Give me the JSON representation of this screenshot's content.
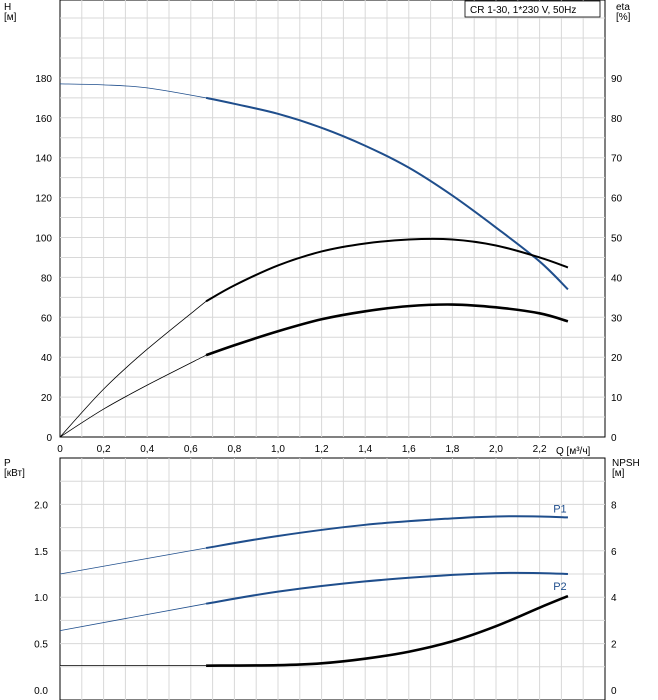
{
  "chart_data": [
    {
      "type": "line",
      "title": "CR 1-30, 1*230 V, 50Hz",
      "ylabel": "H\n[м]",
      "ylabel_right": "eta\n[%]",
      "xlabel": "Q [м³/ч]",
      "xlim": [
        0,
        2.5
      ],
      "ylim": [
        0,
        200
      ],
      "ylim_right": [
        0,
        100
      ],
      "x_ticks": [
        "0",
        "0,2",
        "0,4",
        "0,6",
        "0,8",
        "1,0",
        "1,2",
        "1,4",
        "1,6",
        "1,8",
        "2,0",
        "2,2"
      ],
      "y_ticks": [
        "0",
        "20",
        "40",
        "60",
        "80",
        "100",
        "120",
        "140",
        "160",
        "180"
      ],
      "y_ticks_right": [
        "0",
        "10",
        "20",
        "30",
        "40",
        "50",
        "60",
        "70",
        "80",
        "90"
      ],
      "grid": true,
      "legend": "top-right",
      "series": [
        {
          "axis": "left",
          "color": "#1f4e8c",
          "thin_until_x": 0.67,
          "x": [
            0,
            0.2,
            0.4,
            0.67,
            0.8,
            1.0,
            1.2,
            1.4,
            1.6,
            1.8,
            2.0,
            2.2,
            2.33
          ],
          "y": [
            177,
            176.5,
            175,
            170,
            167,
            162,
            155,
            146,
            135,
            121,
            105,
            88,
            74
          ]
        },
        {
          "axis": "right",
          "color": "#000000",
          "thin_until_x": 0.67,
          "x": [
            0,
            0.2,
            0.4,
            0.67,
            0.8,
            1.0,
            1.2,
            1.4,
            1.6,
            1.8,
            2.0,
            2.2,
            2.33
          ],
          "y": [
            0,
            12,
            22,
            34,
            38,
            43,
            46.5,
            48.5,
            49.5,
            49.5,
            48,
            45,
            42.5
          ]
        },
        {
          "axis": "right",
          "color": "#000000",
          "bold": true,
          "thin_until_x": 0.67,
          "x": [
            0,
            0.2,
            0.4,
            0.67,
            0.8,
            1.0,
            1.2,
            1.4,
            1.6,
            1.8,
            2.0,
            2.2,
            2.33
          ],
          "y": [
            0,
            7,
            13,
            20.5,
            23,
            26.5,
            29.5,
            31.5,
            32.8,
            33.2,
            32.5,
            31,
            29
          ]
        }
      ]
    },
    {
      "type": "line",
      "ylabel": "P\n[кВт]",
      "ylabel_right": "NPSH\n[м]",
      "xlim": [
        0,
        2.5
      ],
      "ylim": [
        0,
        2.5
      ],
      "ylim_right": [
        0,
        10
      ],
      "y_ticks": [
        "0.0",
        "0.5",
        "1.0",
        "1.5",
        "2.0"
      ],
      "y_ticks_right": [
        "0",
        "2",
        "4",
        "6",
        "8"
      ],
      "grid": true,
      "series": [
        {
          "name": "P1",
          "axis": "left",
          "color": "#1f4e8c",
          "thin_until_x": 0.67,
          "x": [
            0,
            0.67,
            1.0,
            1.4,
            1.8,
            2.0,
            2.2,
            2.33
          ],
          "y": [
            1.25,
            1.53,
            1.66,
            1.78,
            1.85,
            1.87,
            1.87,
            1.86
          ]
        },
        {
          "name": "P2",
          "axis": "left",
          "color": "#1f4e8c",
          "thin_until_x": 0.67,
          "x": [
            0,
            0.67,
            1.0,
            1.4,
            1.8,
            2.0,
            2.2,
            2.33
          ],
          "y": [
            0.64,
            0.93,
            1.06,
            1.17,
            1.24,
            1.26,
            1.26,
            1.25
          ]
        },
        {
          "axis": "right",
          "color": "#000000",
          "bold": true,
          "thin_until_x": 0.67,
          "x": [
            0,
            0.67,
            1.0,
            1.2,
            1.4,
            1.6,
            1.8,
            2.0,
            2.2,
            2.33
          ],
          "y": [
            1.05,
            1.05,
            1.07,
            1.15,
            1.35,
            1.65,
            2.1,
            2.75,
            3.55,
            4.05
          ]
        }
      ]
    }
  ]
}
